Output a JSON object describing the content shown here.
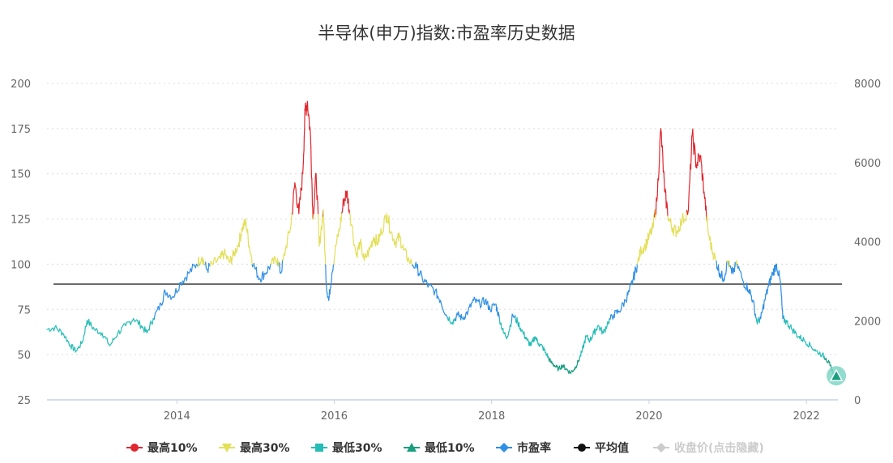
{
  "chart_data": {
    "type": "line",
    "title": "半导体(申万)指数:市盈率历史数据",
    "y_left": {
      "range": [
        25,
        200
      ],
      "ticks": [
        "200",
        "175",
        "150",
        "125",
        "100",
        "75",
        "50",
        "25"
      ]
    },
    "y_right": {
      "range": [
        0,
        8000
      ],
      "ticks": [
        "8000",
        "6000",
        "4000",
        "2000",
        "0"
      ]
    },
    "x_range": [
      2012.35,
      2022.4
    ],
    "x_ticks": [
      "2014",
      "2016",
      "2018",
      "2020",
      "2022"
    ],
    "grid": "horizontal dashed",
    "legend_position": "bottom",
    "average_pe": 89,
    "bands": {
      "low10": 48,
      "low30": 70,
      "high30": 100,
      "high10": 128
    },
    "colors": {
      "high10": "#e0262e",
      "high30": "#e3df5a",
      "low30": "#26bdb6",
      "low10": "#1a9e80",
      "pe": "#2f8fe6",
      "average": "#111111",
      "close": "#cccccc"
    },
    "legend": [
      {
        "label": "最高10%",
        "marker": "circle",
        "color": "#e0262e"
      },
      {
        "label": "最高30%",
        "marker": "triangle-down",
        "color": "#e3df5a"
      },
      {
        "label": "最低30%",
        "marker": "square",
        "color": "#26bdb6"
      },
      {
        "label": "最低10%",
        "marker": "triangle",
        "color": "#1a9e80"
      },
      {
        "label": "市盈率",
        "marker": "diamond",
        "color": "#2f8fe6"
      },
      {
        "label": "平均值",
        "marker": "circle",
        "color": "#111111"
      },
      {
        "label": "收盘价(点击隐藏)",
        "marker": "diamond",
        "color": "#cccccc",
        "muted": true
      }
    ],
    "pe_series": [
      [
        2012.35,
        64
      ],
      [
        2012.45,
        65
      ],
      [
        2012.55,
        62
      ],
      [
        2012.65,
        55
      ],
      [
        2012.72,
        52
      ],
      [
        2012.8,
        57
      ],
      [
        2012.86,
        69
      ],
      [
        2012.95,
        64
      ],
      [
        2013.05,
        62
      ],
      [
        2013.15,
        55
      ],
      [
        2013.25,
        62
      ],
      [
        2013.35,
        66
      ],
      [
        2013.45,
        70
      ],
      [
        2013.55,
        66
      ],
      [
        2013.62,
        62
      ],
      [
        2013.7,
        70
      ],
      [
        2013.8,
        78
      ],
      [
        2013.85,
        85
      ],
      [
        2013.95,
        82
      ],
      [
        2014.05,
        90
      ],
      [
        2014.15,
        95
      ],
      [
        2014.25,
        100
      ],
      [
        2014.32,
        104
      ],
      [
        2014.38,
        97
      ],
      [
        2014.45,
        100
      ],
      [
        2014.55,
        103
      ],
      [
        2014.6,
        106
      ],
      [
        2014.67,
        101
      ],
      [
        2014.72,
        105
      ],
      [
        2014.79,
        112
      ],
      [
        2014.83,
        120
      ],
      [
        2014.88,
        123
      ],
      [
        2014.92,
        110
      ],
      [
        2014.97,
        100
      ],
      [
        2015.05,
        92
      ],
      [
        2015.12,
        95
      ],
      [
        2015.2,
        100
      ],
      [
        2015.28,
        103
      ],
      [
        2015.32,
        95
      ],
      [
        2015.38,
        108
      ],
      [
        2015.45,
        122
      ],
      [
        2015.5,
        145
      ],
      [
        2015.55,
        128
      ],
      [
        2015.6,
        150
      ],
      [
        2015.63,
        185
      ],
      [
        2015.66,
        190
      ],
      [
        2015.7,
        170
      ],
      [
        2015.73,
        125
      ],
      [
        2015.77,
        150
      ],
      [
        2015.81,
        110
      ],
      [
        2015.86,
        130
      ],
      [
        2015.9,
        88
      ],
      [
        2015.93,
        80
      ],
      [
        2015.97,
        95
      ],
      [
        2016.02,
        110
      ],
      [
        2016.07,
        120
      ],
      [
        2016.12,
        135
      ],
      [
        2016.16,
        140
      ],
      [
        2016.2,
        128
      ],
      [
        2016.28,
        105
      ],
      [
        2016.33,
        112
      ],
      [
        2016.38,
        102
      ],
      [
        2016.45,
        108
      ],
      [
        2016.5,
        115
      ],
      [
        2016.55,
        112
      ],
      [
        2016.6,
        118
      ],
      [
        2016.67,
        128
      ],
      [
        2016.72,
        118
      ],
      [
        2016.78,
        112
      ],
      [
        2016.83,
        115
      ],
      [
        2016.88,
        108
      ],
      [
        2016.95,
        102
      ],
      [
        2017.05,
        98
      ],
      [
        2017.12,
        92
      ],
      [
        2017.2,
        88
      ],
      [
        2017.28,
        85
      ],
      [
        2017.35,
        80
      ],
      [
        2017.42,
        72
      ],
      [
        2017.5,
        68
      ],
      [
        2017.57,
        72
      ],
      [
        2017.63,
        70
      ],
      [
        2017.7,
        74
      ],
      [
        2017.77,
        80
      ],
      [
        2017.85,
        78
      ],
      [
        2017.92,
        80
      ],
      [
        2017.98,
        75
      ],
      [
        2018.05,
        78
      ],
      [
        2018.1,
        70
      ],
      [
        2018.15,
        62
      ],
      [
        2018.2,
        60
      ],
      [
        2018.27,
        72
      ],
      [
        2018.33,
        68
      ],
      [
        2018.4,
        62
      ],
      [
        2018.45,
        58
      ],
      [
        2018.5,
        55
      ],
      [
        2018.55,
        60
      ],
      [
        2018.6,
        56
      ],
      [
        2018.65,
        54
      ],
      [
        2018.7,
        50
      ],
      [
        2018.75,
        46
      ],
      [
        2018.8,
        44
      ],
      [
        2018.85,
        42
      ],
      [
        2018.9,
        44
      ],
      [
        2018.95,
        42
      ],
      [
        2019.0,
        40
      ],
      [
        2019.05,
        42
      ],
      [
        2019.1,
        46
      ],
      [
        2019.15,
        52
      ],
      [
        2019.2,
        60
      ],
      [
        2019.25,
        58
      ],
      [
        2019.3,
        62
      ],
      [
        2019.35,
        66
      ],
      [
        2019.42,
        62
      ],
      [
        2019.48,
        68
      ],
      [
        2019.55,
        72
      ],
      [
        2019.62,
        74
      ],
      [
        2019.7,
        80
      ],
      [
        2019.75,
        85
      ],
      [
        2019.8,
        92
      ],
      [
        2019.85,
        100
      ],
      [
        2019.9,
        108
      ],
      [
        2019.95,
        110
      ],
      [
        2020.0,
        115
      ],
      [
        2020.05,
        120
      ],
      [
        2020.1,
        135
      ],
      [
        2020.15,
        175
      ],
      [
        2020.2,
        140
      ],
      [
        2020.25,
        125
      ],
      [
        2020.3,
        120
      ],
      [
        2020.35,
        118
      ],
      [
        2020.42,
        124
      ],
      [
        2020.5,
        130
      ],
      [
        2020.55,
        172
      ],
      [
        2020.6,
        155
      ],
      [
        2020.65,
        160
      ],
      [
        2020.7,
        140
      ],
      [
        2020.75,
        118
      ],
      [
        2020.8,
        108
      ],
      [
        2020.85,
        102
      ],
      [
        2020.9,
        95
      ],
      [
        2020.95,
        92
      ],
      [
        2021.0,
        102
      ],
      [
        2021.05,
        95
      ],
      [
        2021.12,
        100
      ],
      [
        2021.2,
        90
      ],
      [
        2021.27,
        86
      ],
      [
        2021.32,
        80
      ],
      [
        2021.37,
        68
      ],
      [
        2021.42,
        70
      ],
      [
        2021.47,
        80
      ],
      [
        2021.52,
        88
      ],
      [
        2021.57,
        95
      ],
      [
        2021.62,
        100
      ],
      [
        2021.67,
        90
      ],
      [
        2021.7,
        70
      ],
      [
        2021.75,
        68
      ],
      [
        2021.82,
        64
      ],
      [
        2021.9,
        60
      ],
      [
        2021.97,
        58
      ],
      [
        2022.05,
        55
      ],
      [
        2022.12,
        52
      ],
      [
        2022.2,
        50
      ],
      [
        2022.25,
        48
      ],
      [
        2022.3,
        44
      ],
      [
        2022.34,
        40
      ],
      [
        2022.38,
        37
      ]
    ],
    "latest_marker": {
      "x": 2022.38,
      "y": 37
    }
  }
}
